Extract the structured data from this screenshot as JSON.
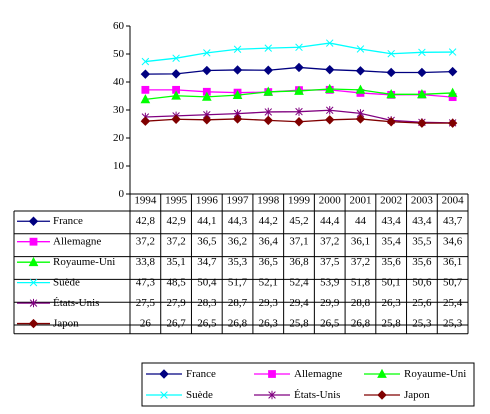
{
  "chart_data": {
    "type": "line",
    "title": "",
    "xlabel": "",
    "ylabel": "",
    "ylim": [
      0,
      60
    ],
    "y_ticks": [
      "0",
      "10",
      "20",
      "30",
      "40",
      "50",
      "60"
    ],
    "categories": [
      "1994",
      "1995",
      "1996",
      "1997",
      "1998",
      "1999",
      "2000",
      "2001",
      "2002",
      "2003",
      "2004"
    ],
    "grid": false,
    "legend_position": "bottom",
    "series": [
      {
        "name": "France",
        "color": "#000080",
        "marker": "diamond",
        "values": [
          42.8,
          42.9,
          44.1,
          44.3,
          44.2,
          45.2,
          44.4,
          44,
          43.4,
          43.4,
          43.7
        ],
        "labels": [
          "42,8",
          "42,9",
          "44,1",
          "44,3",
          "44,2",
          "45,2",
          "44,4",
          "44",
          "43,4",
          "43,4",
          "43,7"
        ]
      },
      {
        "name": "Allemagne",
        "color": "#ff00ff",
        "marker": "square",
        "values": [
          37.2,
          37.2,
          36.5,
          36.2,
          36.4,
          37.1,
          37.2,
          36.1,
          35.4,
          35.5,
          34.6
        ],
        "labels": [
          "37,2",
          "37,2",
          "36,5",
          "36,2",
          "36,4",
          "37,1",
          "37,2",
          "36,1",
          "35,4",
          "35,5",
          "34,6"
        ]
      },
      {
        "name": "Royaume-Uni",
        "color": "#00ff00",
        "marker": "triangle",
        "values": [
          33.8,
          35.1,
          34.7,
          35.3,
          36.5,
          36.8,
          37.5,
          37.2,
          35.6,
          35.6,
          36.1
        ],
        "labels": [
          "33,8",
          "35,1",
          "34,7",
          "35,3",
          "36,5",
          "36,8",
          "37,5",
          "37,2",
          "35,6",
          "35,6",
          "36,1"
        ]
      },
      {
        "name": "Suède",
        "color": "#00ffff",
        "marker": "x",
        "values": [
          47.3,
          48.5,
          50.4,
          51.7,
          52.1,
          52.4,
          53.9,
          51.8,
          50.1,
          50.6,
          50.7
        ],
        "labels": [
          "47,3",
          "48,5",
          "50,4",
          "51,7",
          "52,1",
          "52,4",
          "53,9",
          "51,8",
          "50,1",
          "50,6",
          "50,7"
        ]
      },
      {
        "name": "États-Unis",
        "color": "#800080",
        "marker": "star",
        "values": [
          27.5,
          27.9,
          28.3,
          28.7,
          29.3,
          29.4,
          29.9,
          28.8,
          26.3,
          25.6,
          25.4
        ],
        "labels": [
          "27,5",
          "27,9",
          "28,3",
          "28,7",
          "29,3",
          "29,4",
          "29,9",
          "28,8",
          "26,3",
          "25,6",
          "25,4"
        ]
      },
      {
        "name": "Japon",
        "color": "#800000",
        "marker": "diamond",
        "values": [
          26,
          26.7,
          26.5,
          26.8,
          26.3,
          25.8,
          26.5,
          26.8,
          25.8,
          25.3,
          25.3
        ],
        "labels": [
          "26",
          "26,7",
          "26,5",
          "26,8",
          "26,3",
          "25,8",
          "26,5",
          "26,8",
          "25,8",
          "25,3",
          "25,3"
        ]
      }
    ]
  }
}
